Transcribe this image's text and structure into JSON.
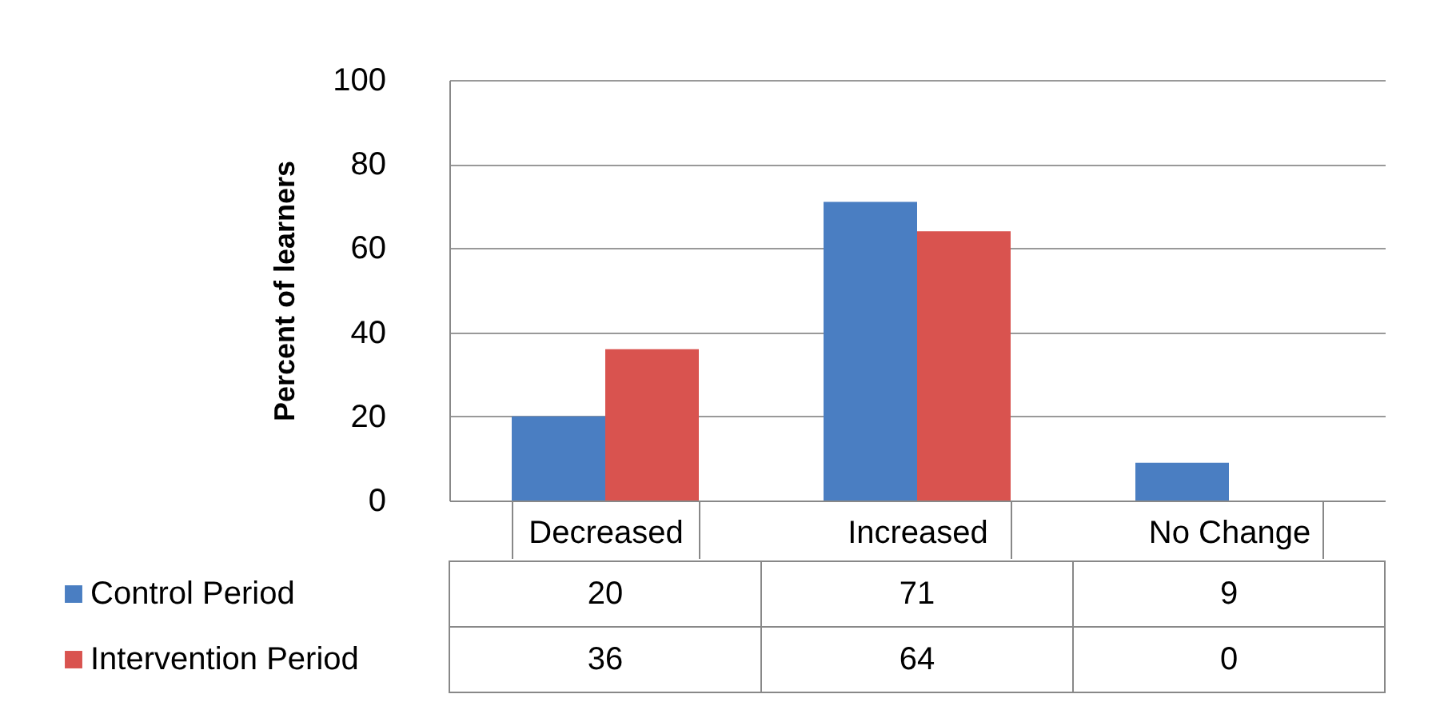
{
  "chart_data": {
    "type": "bar",
    "ylabel": "Percent of learners",
    "categories": [
      "Decreased",
      "Increased",
      "No Change"
    ],
    "series": [
      {
        "name": "Control Period",
        "color": "#4a7ec2",
        "values": [
          20,
          71,
          9
        ]
      },
      {
        "name": "Intervention Period",
        "color": "#d9534f",
        "values": [
          36,
          64,
          0
        ]
      }
    ],
    "ylim": [
      0,
      100
    ],
    "yticks": [
      0,
      20,
      40,
      60,
      80,
      100
    ],
    "grid": "y",
    "legend": "bottom",
    "data_labels": true
  }
}
